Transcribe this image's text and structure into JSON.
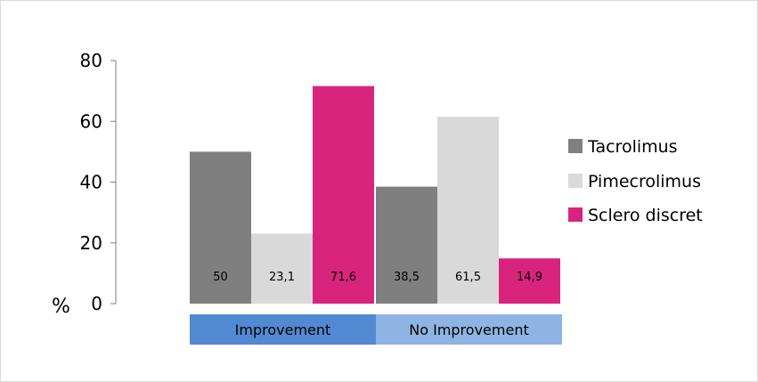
{
  "chart_data": {
    "type": "bar",
    "ylabel": "%",
    "ylim": [
      0,
      80
    ],
    "yticks": [
      0,
      20,
      40,
      60,
      80
    ],
    "categories": [
      "Improvement",
      "No Improvement"
    ],
    "series": [
      {
        "name": "Tacrolimus",
        "color": "#7f7f7f",
        "values": [
          50,
          38.5
        ],
        "labels": [
          "50",
          "38,5"
        ]
      },
      {
        "name": "Pimecrolimus",
        "color": "#d9d9d9",
        "values": [
          23.1,
          61.5
        ],
        "labels": [
          "23,1",
          "61,5"
        ]
      },
      {
        "name": "Sclero discret",
        "color": "#d9247e",
        "values": [
          71.6,
          14.9
        ],
        "labels": [
          "71,6",
          "14,9"
        ]
      }
    ],
    "category_colors": [
      "#5389d3",
      "#8eb4e3"
    ],
    "legend_position": "right",
    "grid": false
  }
}
